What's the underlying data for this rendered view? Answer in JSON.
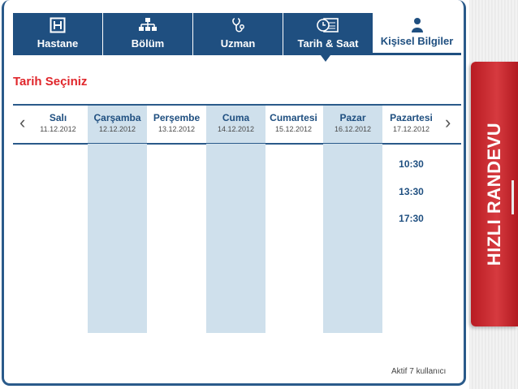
{
  "tabs": [
    {
      "label": "Hastane",
      "icon": "hospital-icon"
    },
    {
      "label": "Bölüm",
      "icon": "department-icon"
    },
    {
      "label": "Uzman",
      "icon": "stethoscope-icon"
    },
    {
      "label": "Tarih & Saat",
      "icon": "calendar-clock-icon"
    },
    {
      "label": "Kişisel Bilgiler",
      "icon": "user-icon"
    }
  ],
  "section_title": "Tarih Seçiniz",
  "days": [
    {
      "name": "Salı",
      "date": "11.12.2012"
    },
    {
      "name": "Çarşamba",
      "date": "12.12.2012"
    },
    {
      "name": "Perşembe",
      "date": "13.12.2012"
    },
    {
      "name": "Cuma",
      "date": "14.12.2012"
    },
    {
      "name": "Cumartesi",
      "date": "15.12.2012"
    },
    {
      "name": "Pazar",
      "date": "16.12.2012"
    },
    {
      "name": "Pazartesi",
      "date": "17.12.2012"
    }
  ],
  "times": [
    "10:30",
    "13:30",
    "17:30"
  ],
  "footer": "Aktif 7 kullanıcı",
  "side_badge": "HIZLI RANDEVU",
  "nav": {
    "prev": "‹",
    "next": "›"
  },
  "colors": {
    "primary": "#1f4f80",
    "accent": "#e0262b",
    "shade": "#cfe0ec",
    "badge": "#c62828"
  }
}
